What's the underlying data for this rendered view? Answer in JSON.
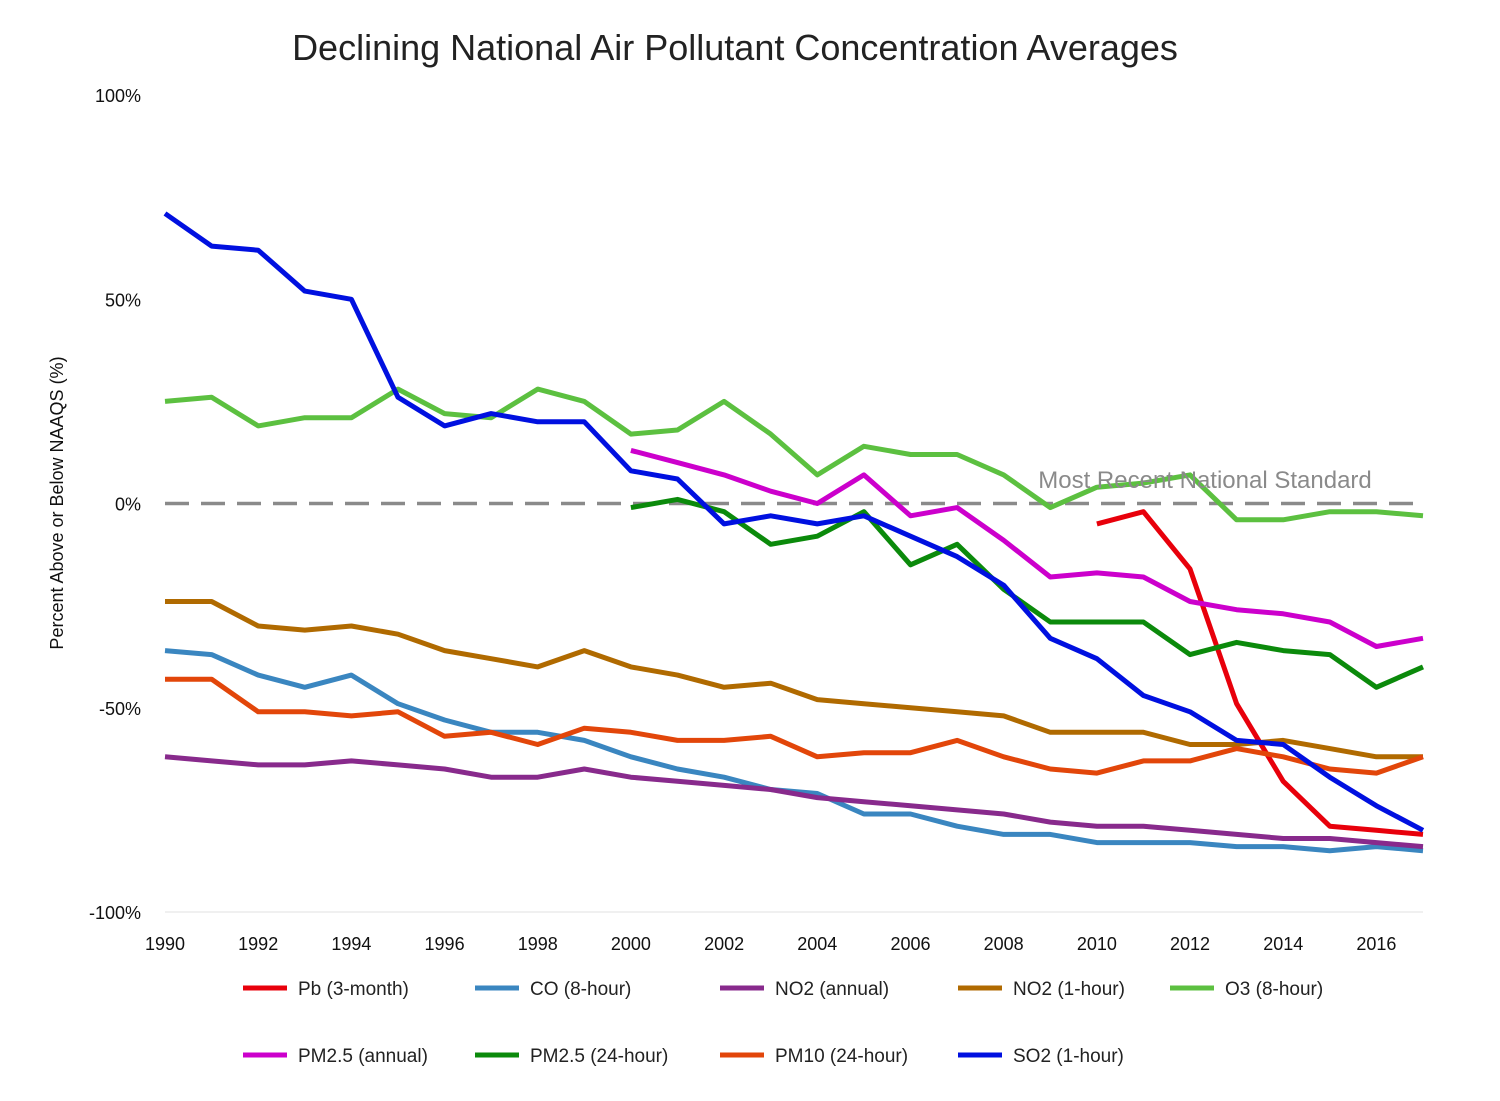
{
  "chart_data": {
    "type": "line",
    "title": "Declining National Air Pollutant Concentration Averages",
    "xlabel": "",
    "ylabel": "Percent Above or Below NAAQS (%)",
    "xlim": [
      1990,
      2017
    ],
    "ylim": [
      -100,
      100
    ],
    "x_ticks": [
      "1990",
      "1992",
      "1994",
      "1996",
      "1998",
      "2000",
      "2002",
      "2004",
      "2006",
      "2008",
      "2010",
      "2012",
      "2014",
      "2016"
    ],
    "y_ticks": [
      {
        "value": 100,
        "label": "100%"
      },
      {
        "value": 50,
        "label": "50%"
      },
      {
        "value": 0,
        "label": "0%"
      },
      {
        "value": -50,
        "label": "-50%"
      },
      {
        "value": -100,
        "label": "-100%"
      }
    ],
    "reference_line": {
      "value": 0,
      "label": "Most Recent National Standard",
      "color": "#8a8a8a"
    },
    "series": [
      {
        "name": "Pb (3-month)",
        "color": "#e8000b",
        "start": 2010,
        "values": [
          -5,
          -2,
          -16,
          -49,
          -68,
          -79,
          -80,
          -81
        ]
      },
      {
        "name": "CO (8-hour)",
        "color": "#3a86c0",
        "start": 1990,
        "values": [
          -36,
          -37,
          -42,
          -45,
          -42,
          -49,
          -53,
          -56,
          -56,
          -58,
          -62,
          -65,
          -67,
          -70,
          -71,
          -76,
          -76,
          -79,
          -81,
          -81,
          -83,
          -83,
          -83,
          -84,
          -84,
          -85,
          -84,
          -85
        ]
      },
      {
        "name": "NO2 (annual)",
        "color": "#882a8c",
        "start": 1990,
        "values": [
          -62,
          -63,
          -64,
          -64,
          -63,
          -64,
          -65,
          -67,
          -67,
          -65,
          -67,
          -68,
          -69,
          -70,
          -72,
          -73,
          -74,
          -75,
          -76,
          -78,
          -79,
          -79,
          -80,
          -81,
          -82,
          -82,
          -83,
          -84
        ]
      },
      {
        "name": "NO2 (1-hour)",
        "color": "#b06a00",
        "start": 1990,
        "values": [
          -24,
          -24,
          -30,
          -31,
          -30,
          -32,
          -36,
          -38,
          -40,
          -36,
          -40,
          -42,
          -45,
          -44,
          -48,
          -49,
          -50,
          -51,
          -52,
          -56,
          -56,
          -56,
          -59,
          -59,
          -58,
          -60,
          -62,
          -62
        ]
      },
      {
        "name": "O3 (8-hour)",
        "color": "#5cc040",
        "start": 1990,
        "values": [
          25,
          26,
          19,
          21,
          21,
          28,
          22,
          21,
          28,
          25,
          17,
          18,
          25,
          17,
          7,
          14,
          12,
          12,
          7,
          -1,
          4,
          5,
          7,
          -4,
          -4,
          -2,
          -2,
          -3
        ]
      },
      {
        "name": "PM2.5 (annual)",
        "color": "#cc00cc",
        "start": 2000,
        "values": [
          13,
          10,
          7,
          3,
          0,
          7,
          -3,
          -1,
          -9,
          -18,
          -17,
          -18,
          -24,
          -26,
          -27,
          -29,
          -35,
          -33
        ]
      },
      {
        "name": "PM2.5 (24-hour)",
        "color": "#0b8a0b",
        "start": 2000,
        "values": [
          -1,
          1,
          -2,
          -10,
          -8,
          -2,
          -15,
          -10,
          -21,
          -29,
          -29,
          -29,
          -37,
          -34,
          -36,
          -37,
          -45,
          -40
        ]
      },
      {
        "name": "PM10 (24-hour)",
        "color": "#e2460a",
        "start": 1990,
        "values": [
          -43,
          -43,
          -51,
          -51,
          -52,
          -51,
          -57,
          -56,
          -59,
          -55,
          -56,
          -58,
          -58,
          -57,
          -62,
          -61,
          -61,
          -58,
          -62,
          -65,
          -66,
          -63,
          -63,
          -60,
          -62,
          -65,
          -66,
          -62
        ]
      },
      {
        "name": "SO2 (1-hour)",
        "color": "#0010e0",
        "start": 1990,
        "values": [
          71,
          63,
          62,
          52,
          50,
          26,
          19,
          22,
          20,
          20,
          8,
          6,
          -5,
          -3,
          -5,
          -3,
          -8,
          -13,
          -20,
          -33,
          -38,
          -47,
          -51,
          -58,
          -59,
          -67,
          -74,
          -80
        ]
      }
    ]
  }
}
